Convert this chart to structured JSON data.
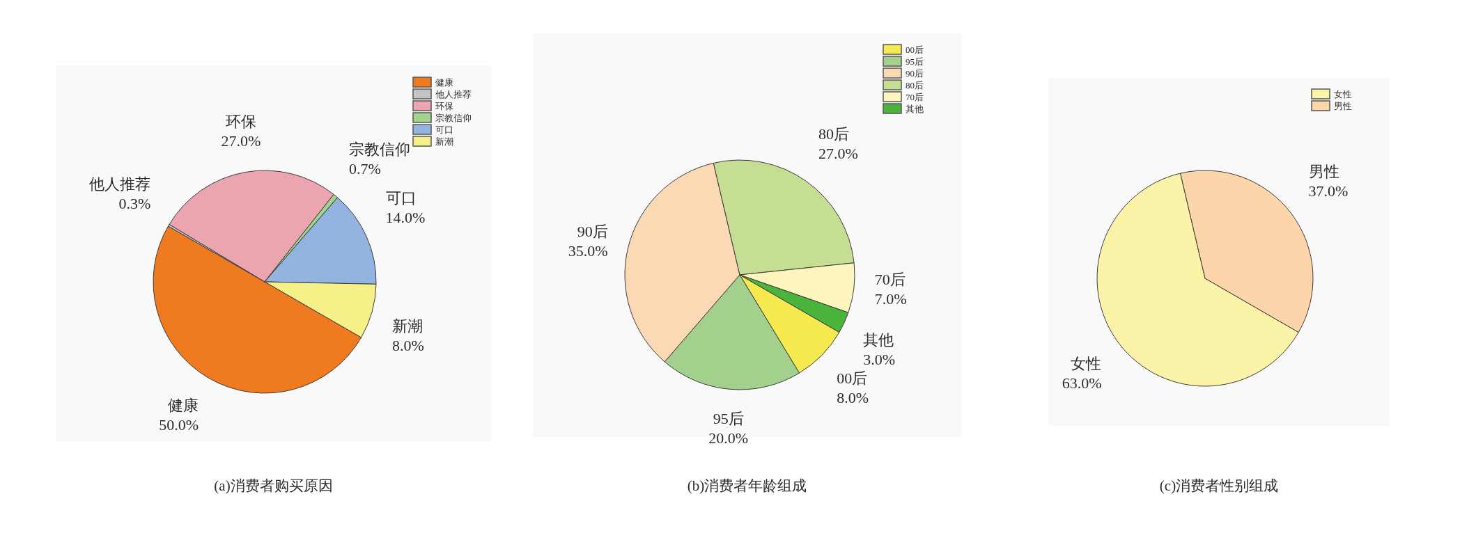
{
  "chart_data": [
    {
      "type": "pie",
      "title": "(a)消费者购买原因",
      "categories": [
        "健康",
        "他人推荐",
        "环保",
        "宗教信仰",
        "可口",
        "新潮"
      ],
      "values": [
        50,
        0.3,
        27,
        0.7,
        14,
        8
      ],
      "colors": [
        "#f07a20",
        "#c4c4c4",
        "#eba5b0",
        "#9fd48a",
        "#93b3e0",
        "#f6f088"
      ],
      "value_labels": [
        "50.0%",
        "0.3%",
        "27.0%",
        "0.7%",
        "14.0%",
        "8.0%"
      ],
      "legend": "top right"
    },
    {
      "type": "pie",
      "title": "(b)消费者年龄组成",
      "categories": [
        "00后",
        "95后",
        "90后",
        "80后",
        "70后",
        "其他"
      ],
      "values": [
        8,
        20,
        35,
        27,
        7,
        3
      ],
      "colors": [
        "#f6ea50",
        "#a3d08c",
        "#fbd9b4",
        "#c6dd94",
        "#fdf5bd",
        "#4bb43c"
      ],
      "value_labels": [
        "8.0%",
        "20.0%",
        "35.0%",
        "27.0%",
        "7.0%",
        "3.0%"
      ],
      "legend": "top right"
    },
    {
      "type": "pie",
      "title": "(c)消费者性别组成",
      "categories": [
        "女性",
        "男性"
      ],
      "values": [
        63,
        37
      ],
      "colors": [
        "#fbf3a8",
        "#fcd5ab"
      ],
      "value_labels": [
        "63.0%",
        "37.0%"
      ],
      "legend": "top right"
    }
  ]
}
